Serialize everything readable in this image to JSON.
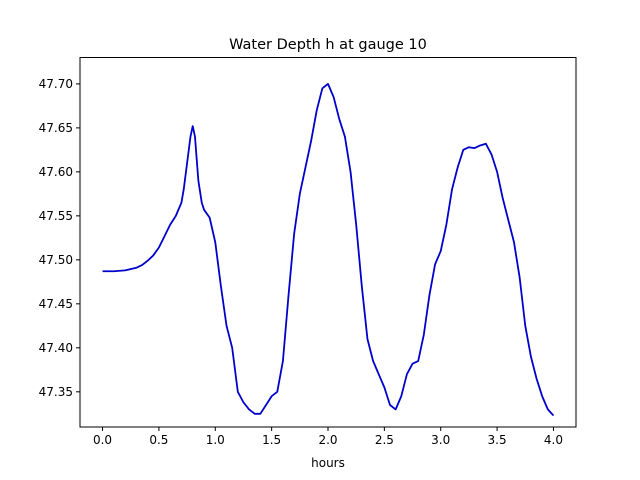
{
  "chart_data": {
    "type": "line",
    "title": "Water Depth h at gauge 10",
    "xlabel": "hours",
    "ylabel": "",
    "xlim": [
      -0.2,
      4.2
    ],
    "ylim": [
      47.31,
      47.73
    ],
    "xticks": [
      0.0,
      0.5,
      1.0,
      1.5,
      2.0,
      2.5,
      3.0,
      3.5,
      4.0
    ],
    "xtick_labels": [
      "0.0",
      "0.5",
      "1.0",
      "1.5",
      "2.0",
      "2.5",
      "3.0",
      "3.5",
      "4.0"
    ],
    "yticks": [
      47.35,
      47.4,
      47.45,
      47.5,
      47.55,
      47.6,
      47.65,
      47.7
    ],
    "ytick_labels": [
      "47.35",
      "47.40",
      "47.45",
      "47.50",
      "47.55",
      "47.60",
      "47.65",
      "47.70"
    ],
    "grid": false,
    "series": [
      {
        "color": "#0000cc",
        "x": [
          0.0,
          0.1,
          0.2,
          0.3,
          0.35,
          0.4,
          0.45,
          0.5,
          0.55,
          0.6,
          0.65,
          0.7,
          0.72,
          0.75,
          0.78,
          0.8,
          0.82,
          0.85,
          0.88,
          0.9,
          0.95,
          1.0,
          1.05,
          1.1,
          1.15,
          1.2,
          1.25,
          1.3,
          1.35,
          1.4,
          1.45,
          1.5,
          1.55,
          1.6,
          1.65,
          1.7,
          1.75,
          1.8,
          1.85,
          1.9,
          1.95,
          2.0,
          2.05,
          2.1,
          2.15,
          2.2,
          2.25,
          2.3,
          2.35,
          2.4,
          2.45,
          2.5,
          2.55,
          2.6,
          2.65,
          2.7,
          2.75,
          2.8,
          2.85,
          2.9,
          2.95,
          3.0,
          3.05,
          3.1,
          3.15,
          3.2,
          3.25,
          3.3,
          3.35,
          3.4,
          3.45,
          3.5,
          3.55,
          3.6,
          3.65,
          3.7,
          3.75,
          3.8,
          3.85,
          3.9,
          3.95,
          4.0
        ],
        "y": [
          47.487,
          47.487,
          47.488,
          47.491,
          47.494,
          47.499,
          47.505,
          47.514,
          47.527,
          47.54,
          47.55,
          47.565,
          47.58,
          47.61,
          47.64,
          47.652,
          47.64,
          47.59,
          47.565,
          47.557,
          47.548,
          47.52,
          47.47,
          47.425,
          47.4,
          47.35,
          47.338,
          47.33,
          47.325,
          47.325,
          47.335,
          47.345,
          47.35,
          47.385,
          47.46,
          47.53,
          47.575,
          47.605,
          47.635,
          47.67,
          47.695,
          47.7,
          47.685,
          47.66,
          47.64,
          47.6,
          47.54,
          47.47,
          47.41,
          47.385,
          47.37,
          47.355,
          47.335,
          47.33,
          47.345,
          47.37,
          47.382,
          47.385,
          47.415,
          47.46,
          47.495,
          47.51,
          47.54,
          47.58,
          47.605,
          47.625,
          47.628,
          47.627,
          47.63,
          47.632,
          47.62,
          47.6,
          47.57,
          47.545,
          47.52,
          47.48,
          47.425,
          47.39,
          47.365,
          47.345,
          47.33,
          47.323
        ]
      }
    ]
  }
}
